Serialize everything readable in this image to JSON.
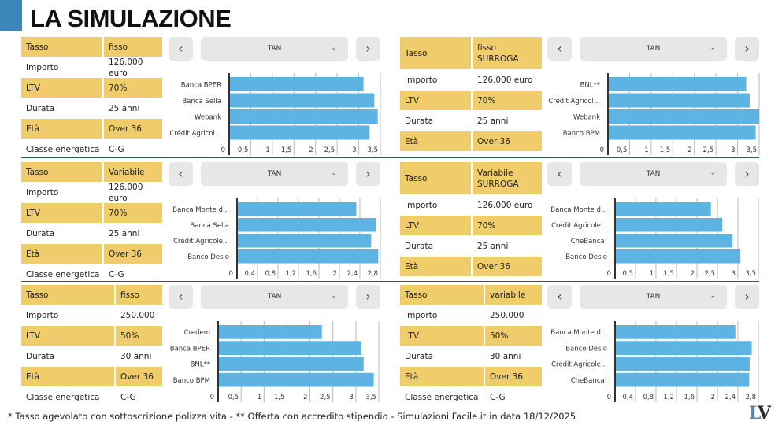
{
  "header": {
    "title": "LA SIMULAZIONE"
  },
  "colors": {
    "highlight": "#f0cc6a",
    "bar": "#5db4e2",
    "accent": "#3a87b8",
    "divider": "#2e5e4a",
    "button_bg": "#e7e7e7"
  },
  "controls": {
    "prev_label": "‹",
    "next_label": "›",
    "select_value": "TAN",
    "chevron": "⌄"
  },
  "panels": [
    {
      "params": [
        {
          "key": "Tasso",
          "value": "fisso",
          "highlight": true
        },
        {
          "key": "Importo",
          "value": "126.000 euro",
          "highlight": false
        },
        {
          "key": "LTV",
          "value": "70%",
          "highlight": true
        },
        {
          "key": "Durata",
          "value": "25 anni",
          "highlight": false
        },
        {
          "key": "Età",
          "value": "Over 36",
          "highlight": true
        },
        {
          "key": "Classe energetica",
          "value": "C-G",
          "highlight": false
        }
      ]
    },
    {
      "params": [
        {
          "key": "Tasso",
          "value": "fisso\nSURROGA",
          "highlight": true
        },
        {
          "key": "Importo",
          "value": "126.000 euro",
          "highlight": false
        },
        {
          "key": "LTV",
          "value": "70%",
          "highlight": true
        },
        {
          "key": "Durata",
          "value": "25 anni",
          "highlight": false
        },
        {
          "key": "Età",
          "value": "Over 36",
          "highlight": true
        }
      ]
    },
    {
      "params": [
        {
          "key": "Tasso",
          "value": "Variabile",
          "highlight": true
        },
        {
          "key": "Importo",
          "value": "126.000 euro",
          "highlight": false
        },
        {
          "key": "LTV",
          "value": "70%",
          "highlight": true
        },
        {
          "key": "Durata",
          "value": "25 anni",
          "highlight": false
        },
        {
          "key": "Età",
          "value": "Over 36",
          "highlight": true
        },
        {
          "key": "Classe energetica",
          "value": "C-G",
          "highlight": false
        }
      ]
    },
    {
      "params": [
        {
          "key": "Tasso",
          "value": "Variabile\nSURROGA",
          "highlight": true
        },
        {
          "key": "Importo",
          "value": "126.000 euro",
          "highlight": false
        },
        {
          "key": "LTV",
          "value": "70%",
          "highlight": true
        },
        {
          "key": "Durata",
          "value": "25 anni",
          "highlight": false
        },
        {
          "key": "Età",
          "value": "Over 36",
          "highlight": true
        }
      ]
    },
    {
      "params": [
        {
          "key": "Tasso",
          "value": "fisso",
          "highlight": true
        },
        {
          "key": "Importo",
          "value": "250.000",
          "highlight": false
        },
        {
          "key": "LTV",
          "value": "50%",
          "highlight": true
        },
        {
          "key": "Durata",
          "value": "30 anni",
          "highlight": false
        },
        {
          "key": "Età",
          "value": "Over 36",
          "highlight": true
        },
        {
          "key": "Classe energetica",
          "value": "C-G",
          "highlight": false
        }
      ]
    },
    {
      "params": [
        {
          "key": "Tasso",
          "value": "variabile",
          "highlight": true
        },
        {
          "key": "Importo",
          "value": "250.000",
          "highlight": false
        },
        {
          "key": "LTV",
          "value": "50%",
          "highlight": true
        },
        {
          "key": "Durata",
          "value": "30 anni",
          "highlight": false
        },
        {
          "key": "Età",
          "value": "Over 36",
          "highlight": true
        },
        {
          "key": "Classe energetica",
          "value": "C-G",
          "highlight": false
        }
      ]
    }
  ],
  "chart_data": [
    {
      "type": "bar",
      "orientation": "horizontal",
      "title": "TAN",
      "categories": [
        "Banca BPER",
        "Banca Sella",
        "Webank",
        "Crédit Agricol..."
      ],
      "values": [
        3.11,
        3.36,
        3.44,
        3.25
      ],
      "xlim": [
        0,
        3.5
      ],
      "ticks": [
        0,
        0.5,
        1,
        1.5,
        2,
        2.5,
        3,
        3.5
      ],
      "tick_labels": [
        "0",
        "0,5",
        "1",
        "1,5",
        "2",
        "2,5",
        "3",
        "3,5"
      ],
      "grid": true
    },
    {
      "type": "bar",
      "orientation": "horizontal",
      "title": "TAN",
      "categories": [
        "BNL**",
        "Crédit Agricol...",
        "Webank",
        "Banco BPM"
      ],
      "values": [
        3.2,
        3.28,
        3.5,
        3.42
      ],
      "xlim": [
        0,
        3.5
      ],
      "ticks": [
        0,
        0.5,
        1,
        1.5,
        2,
        2.5,
        3,
        3.5
      ],
      "tick_labels": [
        "0",
        "0,5",
        "1",
        "1,5",
        "2",
        "2,5",
        "3",
        "3,5"
      ],
      "grid": true
    },
    {
      "type": "bar",
      "orientation": "horizontal",
      "title": "TAN",
      "categories": [
        "Banca Monte d...",
        "Banca Sella",
        "Crédit Agricole...",
        "Banco Desio"
      ],
      "values": [
        2.33,
        2.71,
        2.62,
        2.76
      ],
      "xlim": [
        0,
        2.8
      ],
      "ticks": [
        0,
        0.4,
        0.8,
        1.2,
        1.6,
        2,
        2.4,
        2.8
      ],
      "tick_labels": [
        "0",
        "0,4",
        "0,8",
        "1,2",
        "1,6",
        "2",
        "2,4",
        "2,8"
      ],
      "grid": true
    },
    {
      "type": "bar",
      "orientation": "horizontal",
      "title": "TAN",
      "categories": [
        "Banca Monte d...",
        "Crédit Agricole...",
        "CheBanca!",
        "Banco Desio"
      ],
      "values": [
        2.34,
        2.62,
        2.87,
        3.06
      ],
      "xlim": [
        0,
        3.5
      ],
      "ticks": [
        0,
        0.5,
        1,
        1.5,
        2,
        2.5,
        3,
        3.5
      ],
      "tick_labels": [
        "0",
        "0,5",
        "1",
        "1,5",
        "2",
        "2,5",
        "3",
        "3,5"
      ],
      "grid": true
    },
    {
      "type": "bar",
      "orientation": "horizontal",
      "title": "TAN",
      "categories": [
        "Credem",
        "Banca BPER",
        "BNL**",
        "Banco BPM"
      ],
      "values": [
        2.26,
        3.12,
        3.17,
        3.39
      ],
      "xlim": [
        0,
        3.5
      ],
      "ticks": [
        0,
        0.5,
        1,
        1.5,
        2,
        2.5,
        3,
        3.5
      ],
      "tick_labels": [
        "0",
        "0,5",
        "1",
        "1,5",
        "2",
        "2,5",
        "3",
        "3,5"
      ],
      "grid": true
    },
    {
      "type": "bar",
      "orientation": "horizontal",
      "title": "TAN",
      "categories": [
        "Banca Monte d...",
        "Banco Desio",
        "Crédit Agricole...",
        "CheBanca!"
      ],
      "values": [
        2.35,
        2.67,
        2.63,
        2.62
      ],
      "xlim": [
        0,
        2.8
      ],
      "ticks": [
        0,
        0.4,
        0.8,
        1.2,
        1.6,
        2,
        2.4,
        2.8
      ],
      "tick_labels": [
        "0",
        "0,4",
        "0,8",
        "1,2",
        "1,6",
        "2",
        "2,4",
        "2,8"
      ],
      "grid": true
    }
  ],
  "footer": {
    "note": "* Tasso agevolato con sottoscrizione polizza vita - ** Offerta con accredito stipendio - Simulazioni Facile.it in data 18/12/2025",
    "logo_l": "L",
    "logo_v": "V"
  }
}
